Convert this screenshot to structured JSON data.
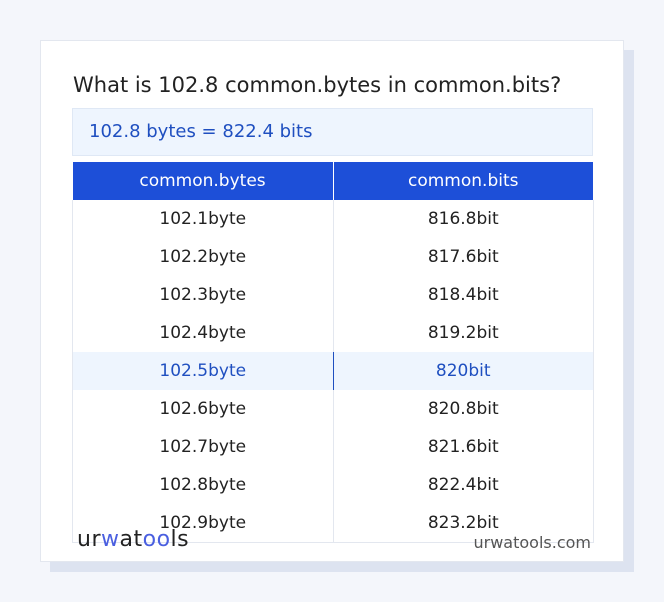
{
  "title": "What is 102.8 common.bytes in common.bits?",
  "result": "102.8 bytes = 822.4 bits",
  "table": {
    "headers": [
      "common.bytes",
      "common.bits"
    ],
    "rows": [
      [
        "102.1byte",
        "816.8bit"
      ],
      [
        "102.2byte",
        "817.6bit"
      ],
      [
        "102.3byte",
        "818.4bit"
      ],
      [
        "102.4byte",
        "819.2bit"
      ],
      [
        "102.5byte",
        "820bit"
      ],
      [
        "102.6byte",
        "820.8bit"
      ],
      [
        "102.7byte",
        "821.6bit"
      ],
      [
        "102.8byte",
        "822.4bit"
      ],
      [
        "102.9byte",
        "823.2bit"
      ]
    ],
    "highlighted_row": 4
  },
  "footer": {
    "logo": "urwatools",
    "site": "urwatools.com"
  },
  "colors": {
    "accent": "#1d4fd8",
    "highlight_bg": "#eef5fe"
  }
}
